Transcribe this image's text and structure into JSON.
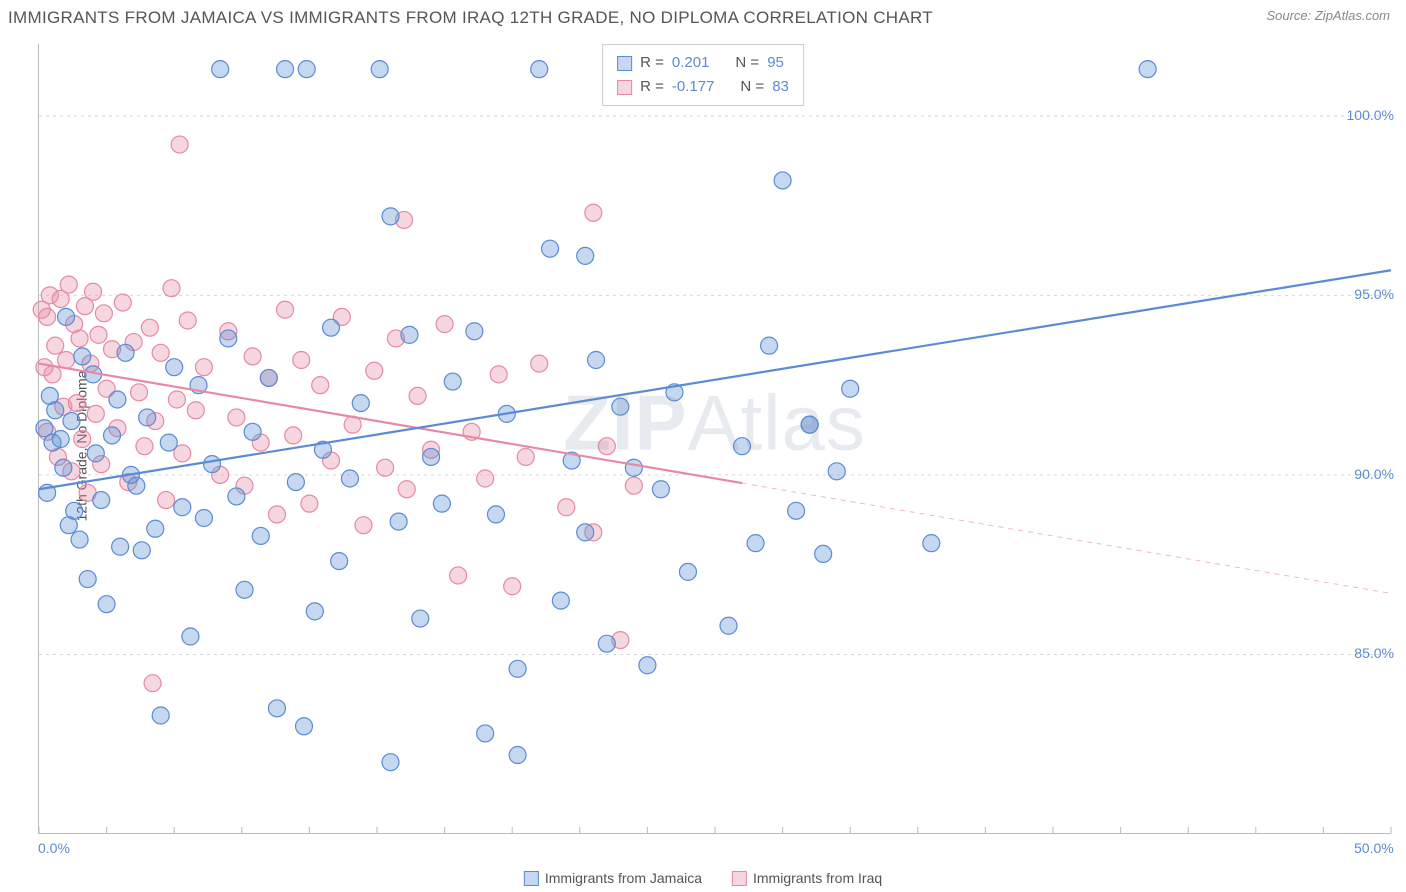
{
  "title": "IMMIGRANTS FROM JAMAICA VS IMMIGRANTS FROM IRAQ 12TH GRADE, NO DIPLOMA CORRELATION CHART",
  "source": "Source: ZipAtlas.com",
  "y_axis_label": "12th Grade, No Diploma",
  "watermark": "ZIPAtlas",
  "chart": {
    "type": "scatter",
    "xlim": [
      0,
      50
    ],
    "ylim": [
      80,
      102
    ],
    "x_ticks": [
      0,
      50
    ],
    "x_tick_labels": [
      "0.0%",
      "50.0%"
    ],
    "y_ticks": [
      85,
      90,
      95,
      100
    ],
    "y_tick_labels": [
      "85.0%",
      "90.0%",
      "95.0%",
      "100.0%"
    ],
    "grid_color": "#d8d8d8",
    "background_color": "#ffffff",
    "marker_radius": 8.5,
    "marker_fill_opacity": 0.35,
    "marker_stroke_width": 1.2,
    "line_width": 2.2
  },
  "series": {
    "jamaica": {
      "label": "Immigrants from Jamaica",
      "color": "#5b8bd4",
      "fill": "rgba(91,139,212,0.35)",
      "R": "0.201",
      "N": "95",
      "trend": {
        "x1": 0,
        "y1": 89.6,
        "x2": 50,
        "y2": 95.7,
        "solid_until": 50
      },
      "points": [
        [
          0.2,
          91.3
        ],
        [
          0.3,
          89.5
        ],
        [
          0.4,
          92.2
        ],
        [
          0.5,
          90.9
        ],
        [
          0.6,
          91.8
        ],
        [
          0.8,
          91.0
        ],
        [
          0.9,
          90.2
        ],
        [
          1.0,
          94.4
        ],
        [
          1.1,
          88.6
        ],
        [
          1.2,
          91.5
        ],
        [
          1.3,
          89.0
        ],
        [
          1.5,
          88.2
        ],
        [
          1.6,
          93.3
        ],
        [
          1.8,
          87.1
        ],
        [
          2.0,
          92.8
        ],
        [
          2.1,
          90.6
        ],
        [
          2.3,
          89.3
        ],
        [
          2.5,
          86.4
        ],
        [
          2.7,
          91.1
        ],
        [
          2.9,
          92.1
        ],
        [
          3.0,
          88.0
        ],
        [
          3.2,
          93.4
        ],
        [
          3.4,
          90.0
        ],
        [
          3.6,
          89.7
        ],
        [
          3.8,
          87.9
        ],
        [
          4.0,
          91.6
        ],
        [
          4.3,
          88.5
        ],
        [
          4.5,
          83.3
        ],
        [
          4.8,
          90.9
        ],
        [
          5.0,
          93.0
        ],
        [
          5.3,
          89.1
        ],
        [
          5.6,
          85.5
        ],
        [
          5.9,
          92.5
        ],
        [
          6.1,
          88.8
        ],
        [
          6.4,
          90.3
        ],
        [
          6.7,
          101.3
        ],
        [
          7.0,
          93.8
        ],
        [
          7.3,
          89.4
        ],
        [
          7.6,
          86.8
        ],
        [
          7.9,
          91.2
        ],
        [
          8.2,
          88.3
        ],
        [
          8.5,
          92.7
        ],
        [
          8.8,
          83.5
        ],
        [
          9.1,
          101.3
        ],
        [
          9.5,
          89.8
        ],
        [
          9.9,
          101.3
        ],
        [
          10.2,
          86.2
        ],
        [
          10.5,
          90.7
        ],
        [
          10.8,
          94.1
        ],
        [
          11.1,
          87.6
        ],
        [
          11.5,
          89.9
        ],
        [
          11.9,
          92.0
        ],
        [
          9.8,
          83.0
        ],
        [
          12.6,
          101.3
        ],
        [
          13.0,
          97.2
        ],
        [
          13.3,
          88.7
        ],
        [
          13.7,
          93.9
        ],
        [
          14.1,
          86.0
        ],
        [
          14.5,
          90.5
        ],
        [
          14.9,
          89.2
        ],
        [
          15.3,
          92.6
        ],
        [
          13.0,
          82.0
        ],
        [
          16.1,
          94.0
        ],
        [
          16.5,
          82.8
        ],
        [
          16.9,
          88.9
        ],
        [
          17.3,
          91.7
        ],
        [
          17.7,
          84.6
        ],
        [
          17.7,
          82.2
        ],
        [
          18.5,
          101.3
        ],
        [
          18.9,
          96.3
        ],
        [
          19.3,
          86.5
        ],
        [
          19.7,
          90.4
        ],
        [
          20.2,
          88.4
        ],
        [
          20.6,
          93.2
        ],
        [
          21.0,
          85.3
        ],
        [
          21.5,
          91.9
        ],
        [
          22.0,
          90.2
        ],
        [
          22.5,
          84.7
        ],
        [
          23.0,
          89.6
        ],
        [
          23.5,
          92.3
        ],
        [
          24.0,
          87.3
        ],
        [
          28.5,
          91.4
        ],
        [
          27.5,
          98.2
        ],
        [
          25.5,
          85.8
        ],
        [
          26.0,
          90.8
        ],
        [
          26.5,
          88.1
        ],
        [
          27.0,
          93.6
        ],
        [
          20.2,
          96.1
        ],
        [
          28.0,
          89.0
        ],
        [
          28.5,
          91.4
        ],
        [
          29.0,
          87.8
        ],
        [
          29.5,
          90.1
        ],
        [
          30.0,
          92.4
        ],
        [
          41.0,
          101.3
        ],
        [
          33.0,
          88.1
        ]
      ]
    },
    "iraq": {
      "label": "Immigrants from Iraq",
      "color": "#e68aa4",
      "fill": "rgba(230,138,164,0.35)",
      "R": "-0.177",
      "N": "83",
      "trend": {
        "x1": 0,
        "y1": 93.1,
        "x2": 50,
        "y2": 86.7,
        "solid_until": 26
      },
      "points": [
        [
          0.1,
          94.6
        ],
        [
          0.2,
          93.0
        ],
        [
          0.3,
          94.4
        ],
        [
          0.3,
          91.2
        ],
        [
          0.4,
          95.0
        ],
        [
          0.5,
          92.8
        ],
        [
          0.6,
          93.6
        ],
        [
          0.7,
          90.5
        ],
        [
          0.8,
          94.9
        ],
        [
          0.9,
          91.9
        ],
        [
          1.0,
          93.2
        ],
        [
          1.1,
          95.3
        ],
        [
          1.2,
          90.1
        ],
        [
          1.3,
          94.2
        ],
        [
          1.4,
          92.0
        ],
        [
          1.5,
          93.8
        ],
        [
          1.6,
          91.0
        ],
        [
          1.7,
          94.7
        ],
        [
          1.8,
          89.5
        ],
        [
          1.9,
          93.1
        ],
        [
          2.0,
          95.1
        ],
        [
          2.1,
          91.7
        ],
        [
          2.2,
          93.9
        ],
        [
          2.3,
          90.3
        ],
        [
          2.4,
          94.5
        ],
        [
          2.5,
          92.4
        ],
        [
          2.7,
          93.5
        ],
        [
          2.9,
          91.3
        ],
        [
          3.1,
          94.8
        ],
        [
          3.3,
          89.8
        ],
        [
          3.5,
          93.7
        ],
        [
          3.7,
          92.3
        ],
        [
          3.9,
          90.8
        ],
        [
          4.1,
          94.1
        ],
        [
          4.3,
          91.5
        ],
        [
          4.5,
          93.4
        ],
        [
          4.7,
          89.3
        ],
        [
          4.9,
          95.2
        ],
        [
          5.1,
          92.1
        ],
        [
          5.3,
          90.6
        ],
        [
          5.5,
          94.3
        ],
        [
          5.8,
          91.8
        ],
        [
          6.1,
          93.0
        ],
        [
          5.2,
          99.2
        ],
        [
          6.7,
          90.0
        ],
        [
          7.0,
          94.0
        ],
        [
          7.3,
          91.6
        ],
        [
          7.6,
          89.7
        ],
        [
          7.9,
          93.3
        ],
        [
          8.2,
          90.9
        ],
        [
          8.5,
          92.7
        ],
        [
          8.8,
          88.9
        ],
        [
          9.1,
          94.6
        ],
        [
          9.4,
          91.1
        ],
        [
          9.7,
          93.2
        ],
        [
          10.0,
          89.2
        ],
        [
          10.4,
          92.5
        ],
        [
          10.8,
          90.4
        ],
        [
          11.2,
          94.4
        ],
        [
          11.6,
          91.4
        ],
        [
          12.0,
          88.6
        ],
        [
          12.4,
          92.9
        ],
        [
          12.8,
          90.2
        ],
        [
          13.2,
          93.8
        ],
        [
          13.6,
          89.6
        ],
        [
          14.0,
          92.2
        ],
        [
          14.5,
          90.7
        ],
        [
          15.0,
          94.2
        ],
        [
          15.5,
          87.2
        ],
        [
          16.0,
          91.2
        ],
        [
          16.5,
          89.9
        ],
        [
          17.0,
          92.8
        ],
        [
          17.5,
          86.9
        ],
        [
          18.0,
          90.5
        ],
        [
          18.5,
          93.1
        ],
        [
          4.2,
          84.2
        ],
        [
          19.5,
          89.1
        ],
        [
          20.5,
          97.3
        ],
        [
          20.5,
          88.4
        ],
        [
          21.0,
          90.8
        ],
        [
          21.5,
          85.4
        ],
        [
          22.0,
          89.7
        ],
        [
          13.5,
          97.1
        ]
      ]
    }
  },
  "legend_top": {
    "r_label": "R =",
    "n_label": "N ="
  }
}
